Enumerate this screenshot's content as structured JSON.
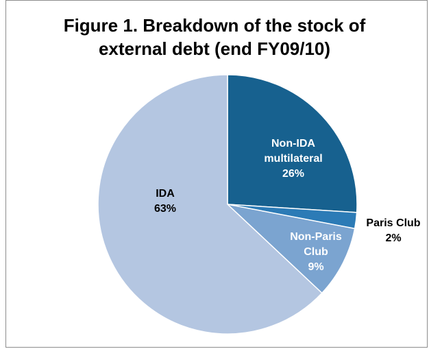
{
  "chart_data": {
    "type": "pie",
    "title": "Figure 1. Breakdown of the stock of external debt (end FY09/10)",
    "categories": [
      "Non-IDA multilateral",
      "Paris Club",
      "Non-Paris Club",
      "IDA"
    ],
    "values": [
      26,
      2,
      9,
      63
    ],
    "value_labels": [
      "26%",
      "2%",
      "9%",
      "63%"
    ],
    "colors": [
      "#17618f",
      "#2c7bb6",
      "#7ba4d0",
      "#b4c6e1"
    ]
  }
}
